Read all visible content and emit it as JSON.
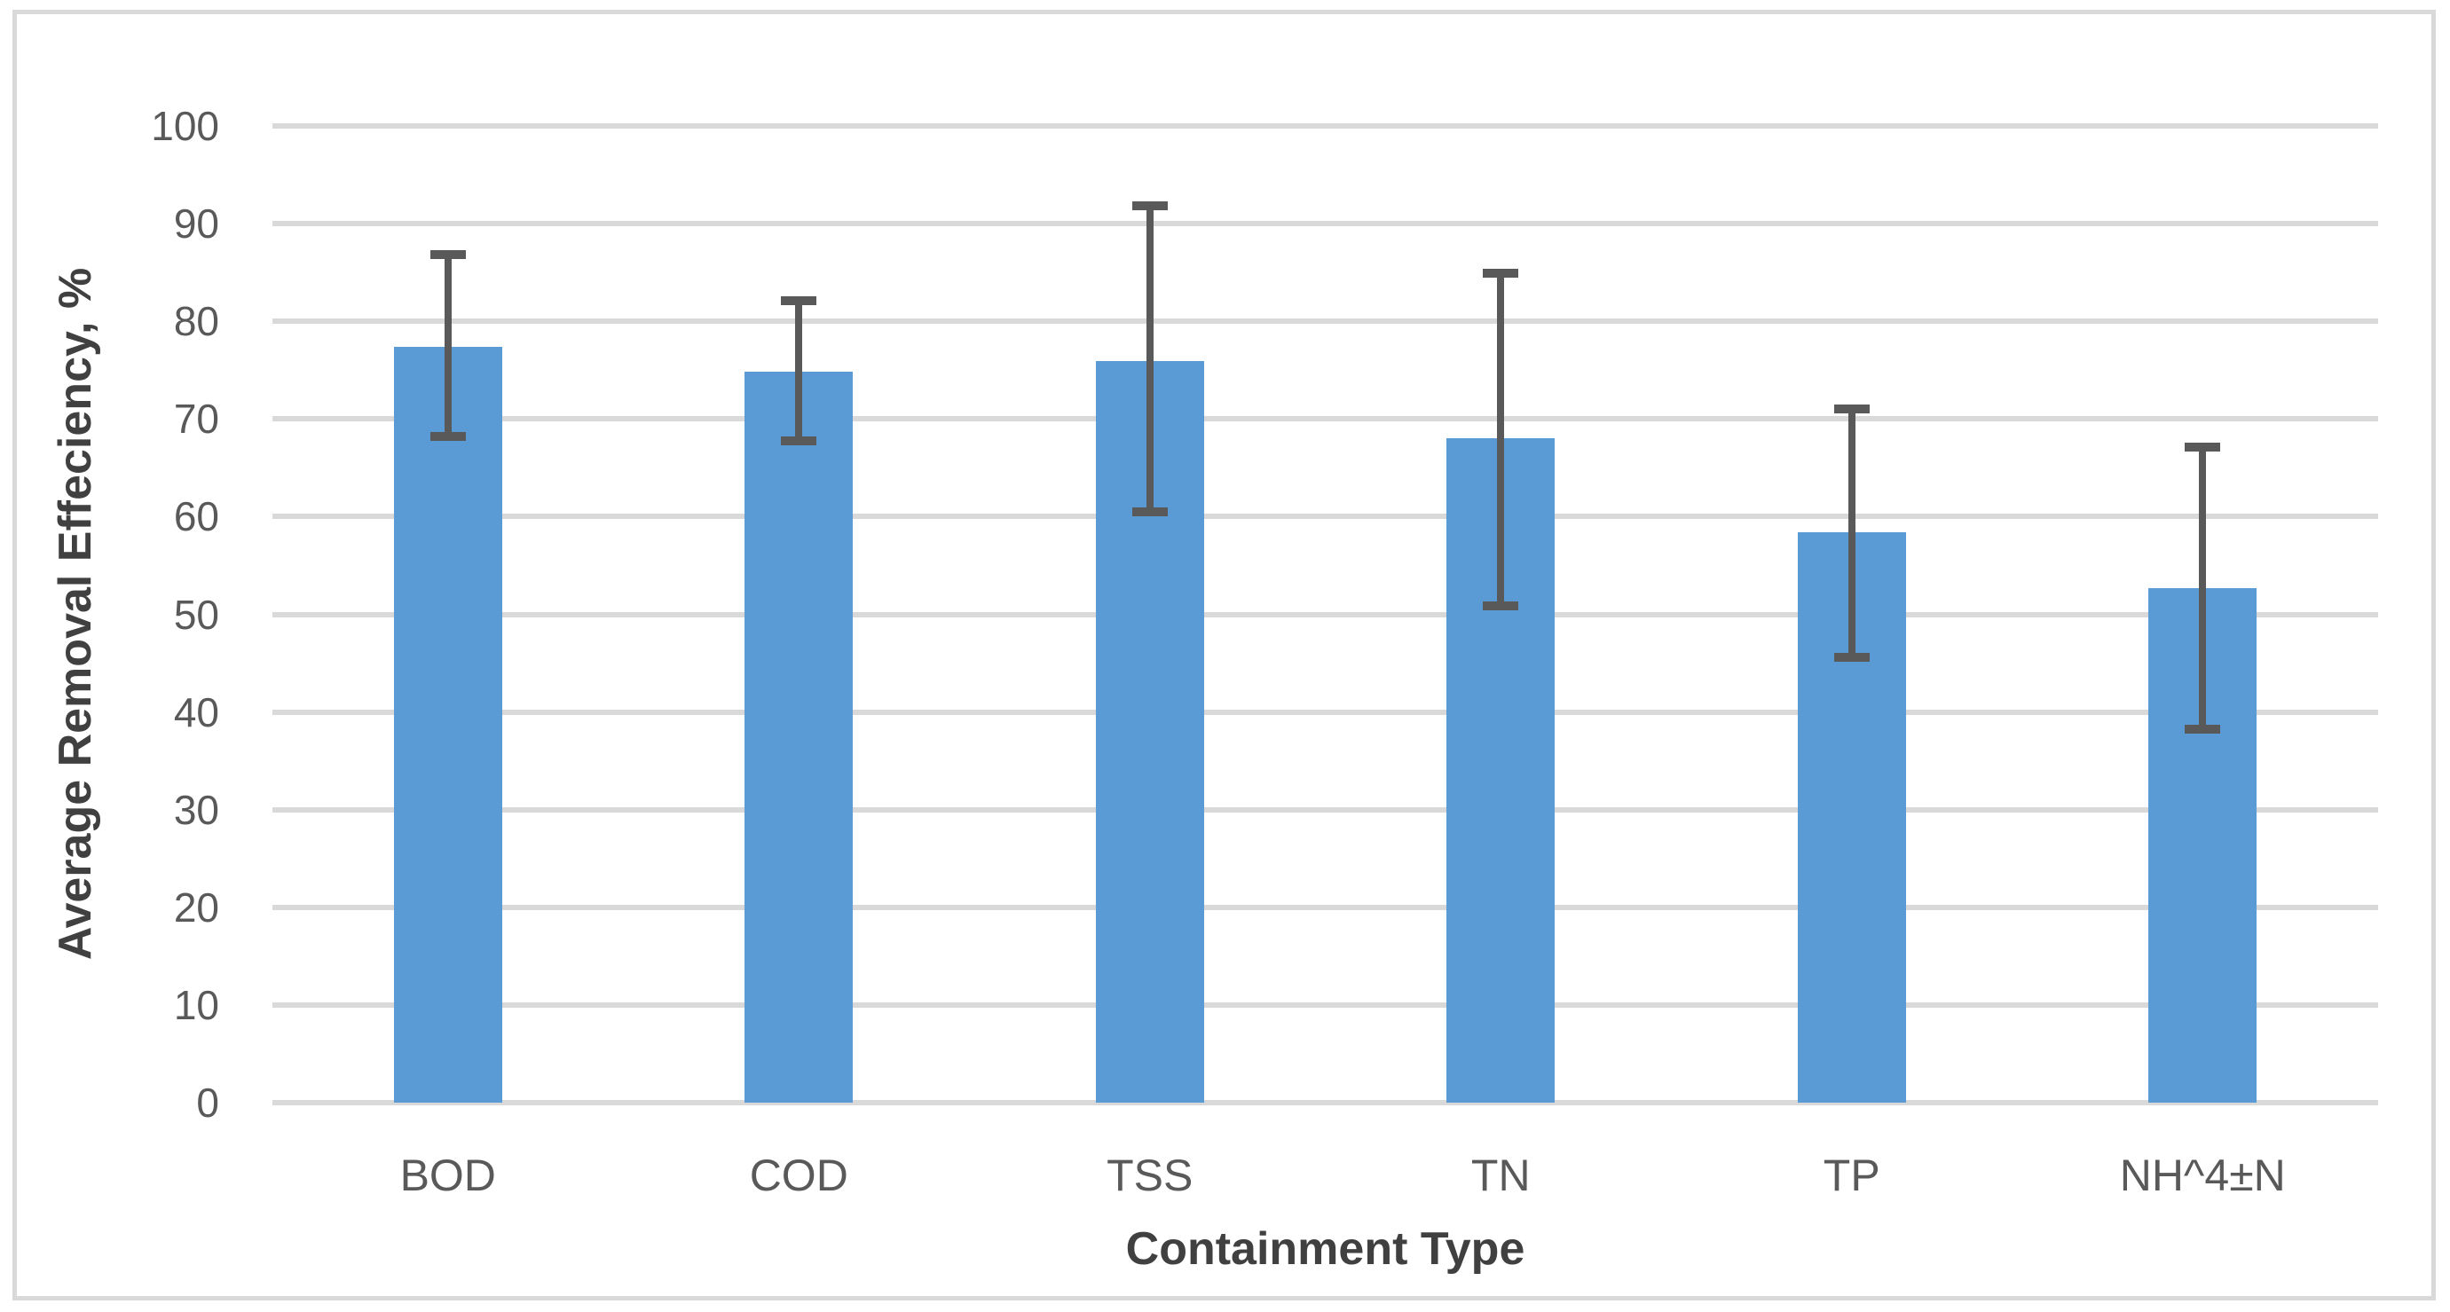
{
  "chart_data": {
    "type": "bar",
    "title": "",
    "xlabel": "Containment Type",
    "ylabel": "Average Removal Effeciency, %",
    "categories": [
      "BOD",
      "COD",
      "TSS",
      "TN",
      "TP",
      "NH^4±N"
    ],
    "values": [
      77.4,
      74.8,
      75.9,
      68.0,
      58.4,
      52.7
    ],
    "error_high": [
      86.8,
      82.1,
      91.8,
      84.9,
      71.0,
      67.1
    ],
    "error_low": [
      68.2,
      67.8,
      60.5,
      50.9,
      45.6,
      38.2
    ],
    "ylim": [
      0,
      100
    ],
    "yticks": [
      0,
      10,
      20,
      30,
      40,
      50,
      60,
      70,
      80,
      90,
      100
    ],
    "grid": true,
    "legend_position": "none",
    "bar_color": "#5b9bd5",
    "error_color": "#595959",
    "gridline_color": "#d9d9d9",
    "tick_label_color": "#595959",
    "axis_title_color": "#404040"
  }
}
